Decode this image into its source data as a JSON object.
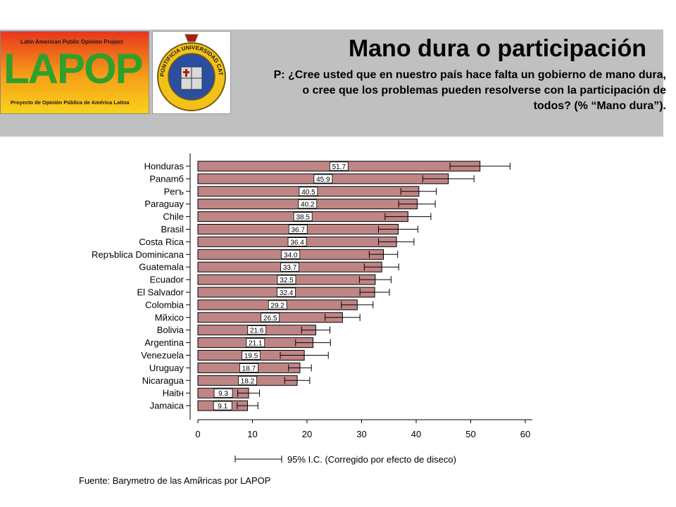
{
  "header": {
    "title": "Mano dura o participación",
    "question": "P: ¿Cree usted que en nuestro país hace falta un gobierno de mano dura, o cree que los problemas pueden resolverse con la participación de todos? (% “Mano dura”).",
    "lapop_logo": {
      "top_text": "Latin American Public Opinion Project",
      "word": "LAPOP",
      "bottom_text": "Proyecto de Opinión Pública de América Latina"
    },
    "seal": {
      "ring_text": "PONTIFICIA UNIVERSIDAD CATOLICA DE CHILE"
    }
  },
  "chart_data": {
    "type": "bar",
    "orientation": "horizontal",
    "categories": [
      "Honduras",
      "Panamб",
      "Perъ",
      "Paraguay",
      "Chile",
      "Brasil",
      "Costa Rica",
      "Repъblica Dominicana",
      "Guatemala",
      "Ecuador",
      "El Salvador",
      "Colombia",
      "Mйxico",
      "Bolivia",
      "Argentina",
      "Venezuela",
      "Uruguay",
      "Nicaragua",
      "Haitн",
      "Jamaica"
    ],
    "values": [
      51.7,
      45.9,
      40.5,
      40.2,
      38.5,
      36.7,
      36.4,
      34.0,
      33.7,
      32.5,
      32.4,
      29.2,
      26.5,
      21.6,
      21.1,
      19.5,
      18.7,
      18.2,
      9.3,
      9.1
    ],
    "value_labels": [
      "51.7",
      "45.9",
      "40.5",
      "40.2",
      "38.5",
      "36.7",
      "36.4",
      "34.0",
      "33.7",
      "32.5",
      "32.4",
      "29.2",
      "26.5",
      "21.6",
      "21.1",
      "19.5",
      "18.7",
      "18.2",
      "9.3",
      "9.1"
    ],
    "ci_low": [
      46.2,
      41.2,
      37.2,
      36.8,
      34.3,
      33.1,
      33.1,
      31.4,
      30.5,
      29.6,
      29.7,
      26.3,
      23.3,
      19.0,
      17.9,
      15.1,
      16.6,
      15.9,
      7.3,
      7.2
    ],
    "ci_high": [
      57.2,
      50.6,
      43.7,
      43.5,
      42.7,
      40.3,
      39.6,
      36.6,
      36.8,
      35.4,
      35.1,
      32.1,
      29.7,
      24.2,
      24.3,
      23.9,
      20.8,
      20.5,
      11.3,
      11.0
    ],
    "xlim": [
      0,
      60
    ],
    "xticks": [
      0,
      10,
      20,
      30,
      40,
      50,
      60
    ],
    "legend_label": "95% I.C. (Corregido por efecto de diseco)",
    "bar_color": "#bf8585",
    "grid": false
  },
  "footer": {
    "source": "Fuente: Barymetro de las Amйricas por LAPOP"
  }
}
